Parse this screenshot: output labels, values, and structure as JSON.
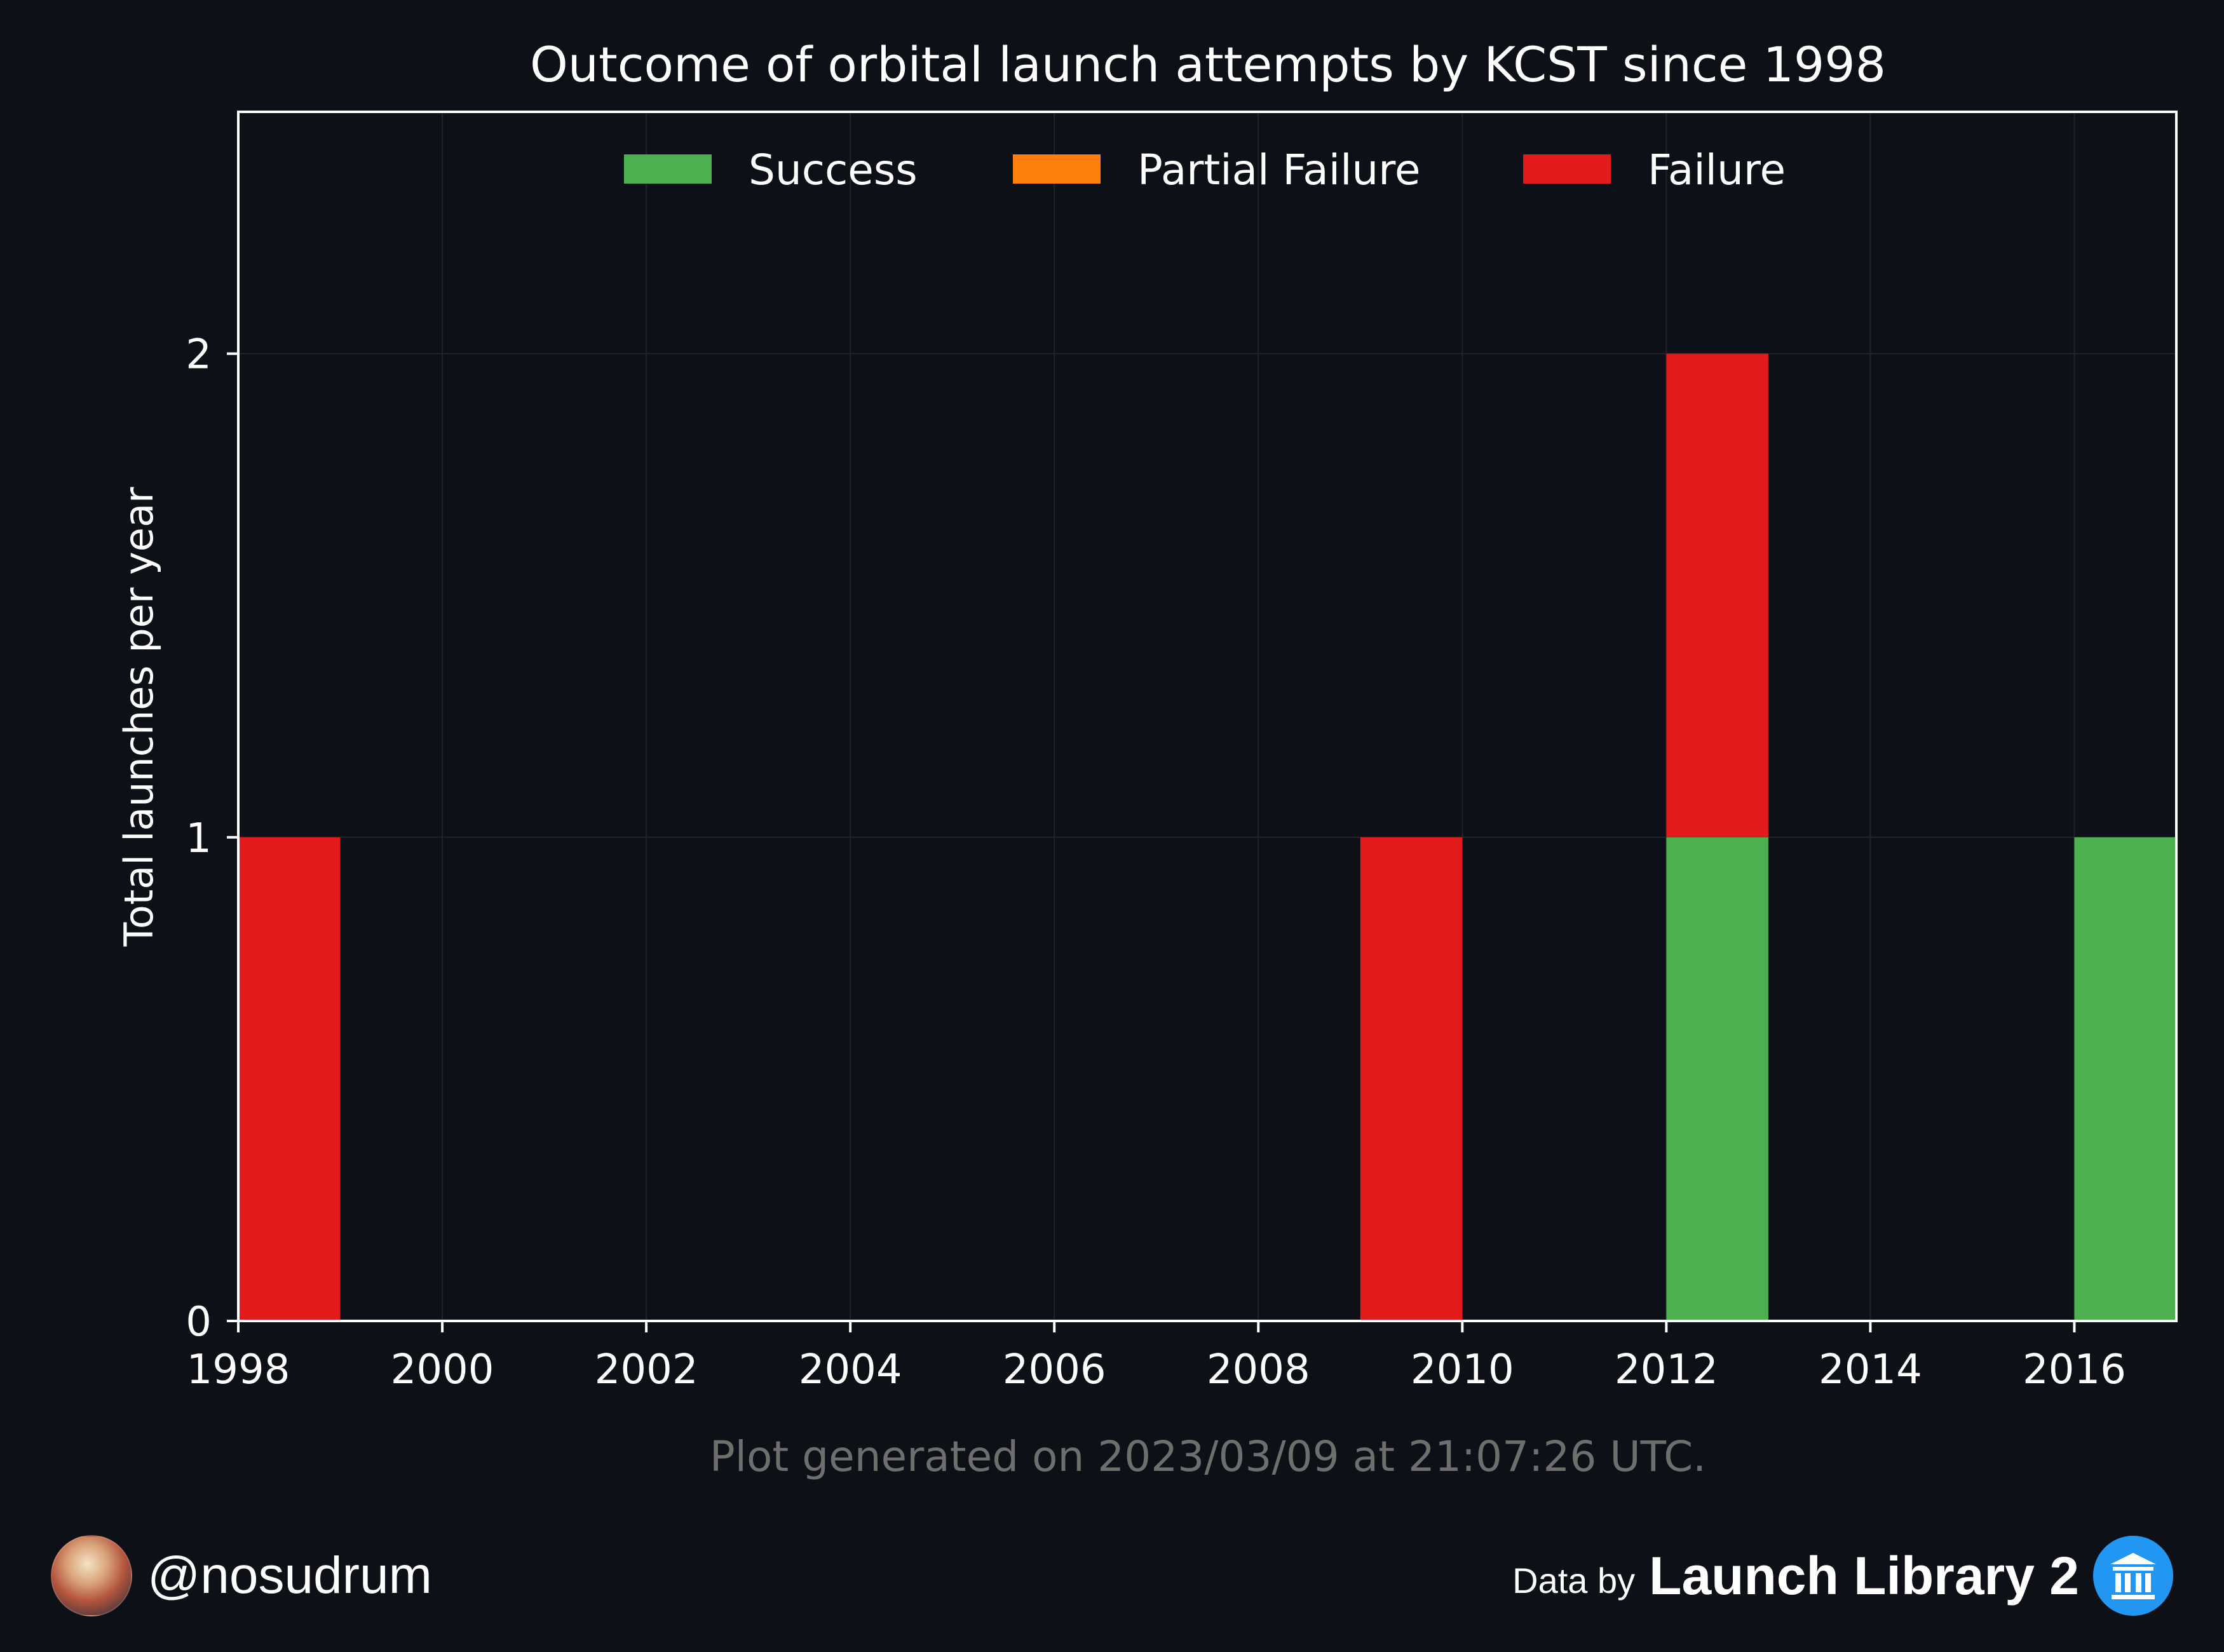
{
  "chart_data": {
    "type": "bar",
    "stacked": true,
    "title": "Outcome of orbital launch attempts by KCST since 1998",
    "ylabel": "Total launches per year",
    "xlabel": "",
    "x": [
      1998,
      2009,
      2012,
      2016
    ],
    "xlim": [
      1998,
      2017
    ],
    "ylim": [
      0,
      2.5
    ],
    "xticks": [
      1998,
      2000,
      2002,
      2004,
      2006,
      2008,
      2010,
      2012,
      2014,
      2016
    ],
    "yticks": [
      0,
      1,
      2
    ],
    "grid": true,
    "legend_position": "top-center",
    "series": [
      {
        "name": "Success",
        "color": "#4caf50",
        "values": [
          0,
          0,
          1,
          1
        ]
      },
      {
        "name": "Partial Failure",
        "color": "#ff7f0e",
        "values": [
          0,
          0,
          0,
          0
        ]
      },
      {
        "name": "Failure",
        "color": "#e31a1c",
        "values": [
          1,
          1,
          1,
          0
        ]
      }
    ]
  },
  "footnote": "Plot generated on 2023/03/09 at 21:07:26 UTC.",
  "footer": {
    "handle": "@nosudrum",
    "credit_prefix": "Data by",
    "credit_name": "Launch Library 2"
  },
  "colors": {
    "background": "#0d1017",
    "axis": "#ffffff",
    "grid": "#1f242d",
    "footnote": "#6e6e6e"
  },
  "icons": {
    "avatar": "astronaut-avatar",
    "logo": "launch-library-logo"
  }
}
